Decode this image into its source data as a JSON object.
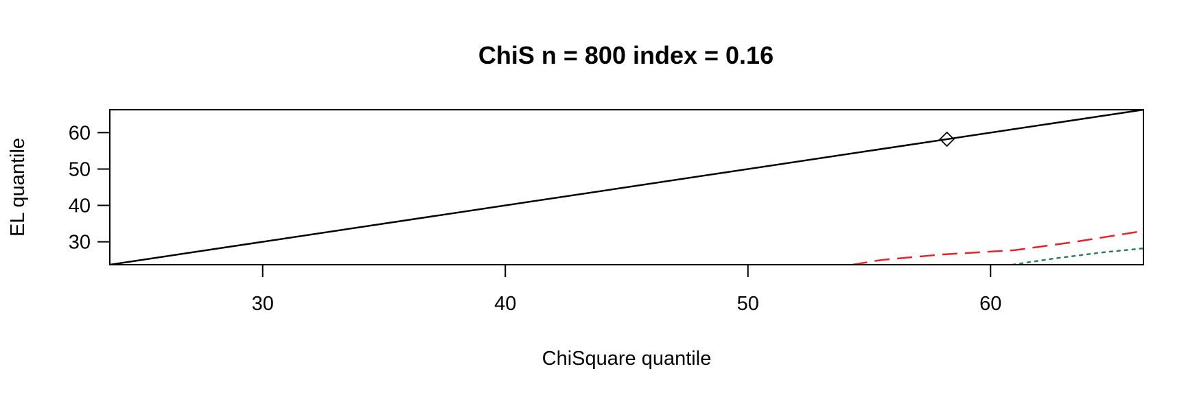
{
  "chart_data": {
    "type": "line",
    "title": "ChiS n = 800 index = 0.16",
    "xlabel": "ChiSquare quantile",
    "ylabel": "EL quantile",
    "xlim": [
      23.7,
      66.3
    ],
    "ylim": [
      23.7,
      66.3
    ],
    "xticks": [
      30,
      40,
      50,
      60
    ],
    "yticks": [
      30,
      40,
      50,
      60
    ],
    "grid": false,
    "legend": "none",
    "series": [
      {
        "style": "solid",
        "color": "#000000",
        "x": [
          23.7,
          66.3
        ],
        "y": [
          23.7,
          66.3
        ]
      },
      {
        "style": "dashed",
        "color": "#e8202a",
        "x": [
          54.3,
          55.5,
          58.0,
          61.0,
          63.5,
          66.3
        ],
        "y": [
          23.7,
          25.0,
          26.5,
          27.7,
          30.0,
          33.0
        ]
      },
      {
        "style": "dotted",
        "color": "#2e7d5b",
        "x": [
          60.9,
          62.5,
          64.5,
          66.3
        ],
        "y": [
          23.7,
          25.3,
          27.0,
          28.2
        ]
      }
    ],
    "points": [
      {
        "x": 58.2,
        "y": 58.2,
        "shape": "diamond",
        "color": "#000000"
      }
    ]
  }
}
